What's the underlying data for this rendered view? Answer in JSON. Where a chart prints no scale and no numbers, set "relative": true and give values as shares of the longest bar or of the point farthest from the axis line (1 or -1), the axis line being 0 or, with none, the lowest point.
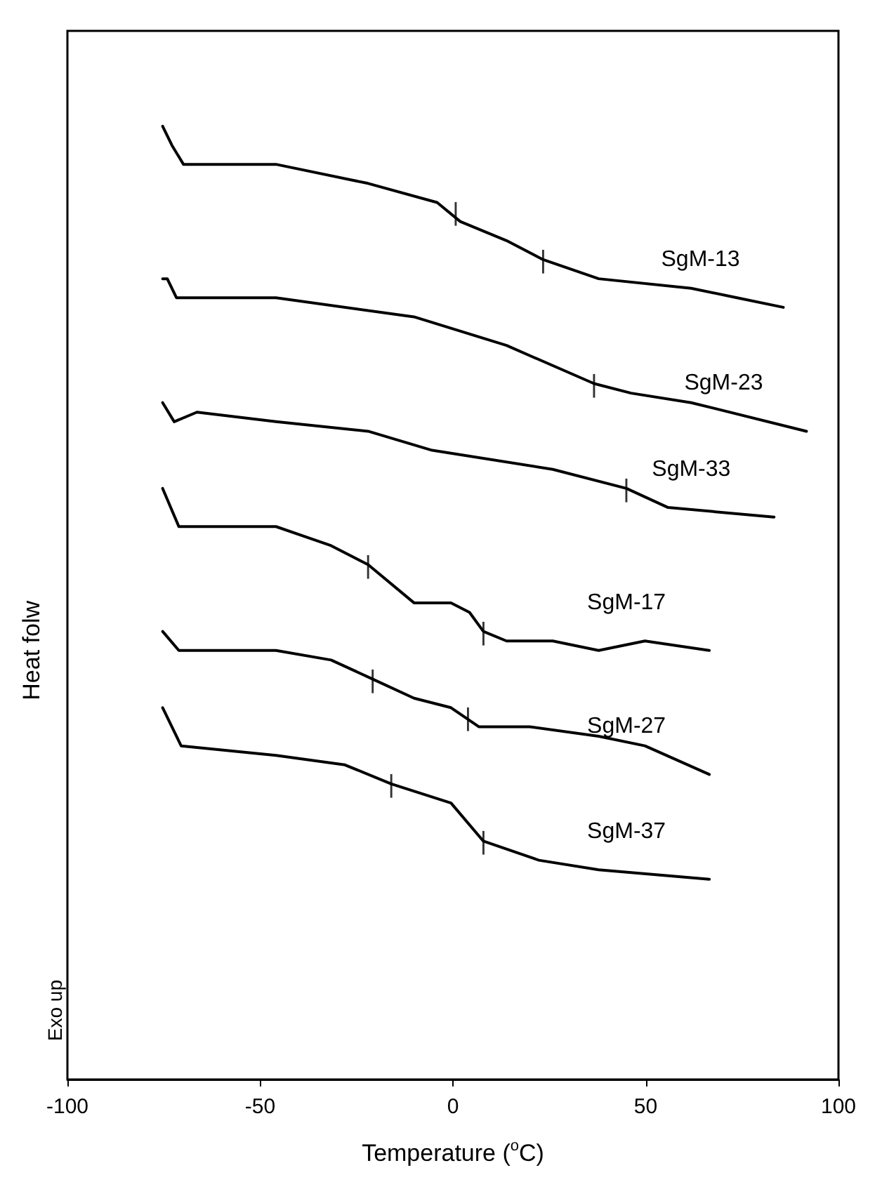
{
  "chart_data": {
    "type": "line",
    "relative": true,
    "xlabel": "Temperature ($^{o}$C)",
    "ylabel": "Heat folw",
    "xlim": [
      -100,
      100
    ],
    "xticks": [
      -100,
      -50,
      0,
      50,
      100
    ],
    "grid": false,
    "legend": false,
    "marker": "none",
    "line_style": "solid",
    "series": [
      {
        "name": "SgM-13",
        "color": "#000000",
        "x": [
          -75.3,
          -72.9,
          -69.9,
          -45.9,
          -22,
          -4.1,
          1.9,
          13.9,
          23.4,
          37.8,
          61.8,
          73.7,
          85.7
        ],
        "values": [
          1.0,
          0.98,
          0.96,
          0.96,
          0.94,
          0.92,
          0.9,
          0.88,
          0.86,
          0.84,
          0.83,
          0.82,
          0.81
        ]
      },
      {
        "name": "SgM-23",
        "color": "#000000",
        "x": [
          -75.3,
          -74.1,
          -71.7,
          -45.9,
          -10.1,
          13.9,
          36.6,
          46.2,
          61.8,
          91.7
        ],
        "values": [
          0.84,
          0.84,
          0.82,
          0.82,
          0.8,
          0.77,
          0.73,
          0.72,
          0.71,
          0.68
        ]
      },
      {
        "name": "SgM-33",
        "color": "#000000",
        "x": [
          -75.3,
          -72.3,
          -66.4,
          -45.9,
          -22,
          -5.4,
          25.9,
          45,
          55.8,
          83.3
        ],
        "values": [
          0.71,
          0.69,
          0.7,
          0.69,
          0.68,
          0.66,
          0.64,
          0.62,
          0.6,
          0.59
        ]
      },
      {
        "name": "SgM-17",
        "color": "#000000",
        "x": [
          -75.3,
          -71.1,
          -67.5,
          -45.9,
          -31.6,
          -22,
          -10.1,
          -0.5,
          4.3,
          7.9,
          13.9,
          25.9,
          37.8,
          49.8,
          66.5
        ],
        "values": [
          0.62,
          0.58,
          0.58,
          0.58,
          0.56,
          0.54,
          0.5,
          0.5,
          0.49,
          0.47,
          0.46,
          0.46,
          0.45,
          0.46,
          0.45
        ]
      },
      {
        "name": "SgM-27",
        "color": "#000000",
        "x": [
          -75.3,
          -71.1,
          -45.9,
          -31.6,
          -20.8,
          -10.1,
          -0.5,
          6.7,
          19.9,
          37.8,
          49.8,
          66.5
        ],
        "values": [
          0.47,
          0.45,
          0.45,
          0.44,
          0.42,
          0.4,
          0.39,
          0.37,
          0.37,
          0.36,
          0.35,
          0.32
        ]
      },
      {
        "name": "SgM-37",
        "color": "#000000",
        "x": [
          -75.3,
          -70.5,
          -45.9,
          -28,
          -16,
          -0.5,
          7.9,
          22.3,
          37.8,
          66.5
        ],
        "values": [
          0.39,
          0.35,
          0.34,
          0.33,
          0.31,
          0.29,
          0.25,
          0.23,
          0.22,
          0.21
        ]
      }
    ],
    "annotations": [
      "Exo up",
      {
        "text": "|",
        "x": 0.7,
        "y": 0.91
      },
      {
        "text": "|",
        "x": 23.4,
        "y": 0.86
      },
      {
        "text": "|",
        "x": 36.6,
        "y": 0.73
      },
      {
        "text": "|",
        "x": 45,
        "y": 0.62
      },
      {
        "text": "|",
        "x": -22,
        "y": 0.54
      },
      {
        "text": "|",
        "x": 7.9,
        "y": 0.47
      },
      {
        "text": "|",
        "x": -20.8,
        "y": 0.42
      },
      {
        "text": "|",
        "x": 3.9,
        "y": 0.38
      },
      {
        "text": "|",
        "x": -16,
        "y": 0.31
      },
      {
        "text": "|",
        "x": 7.9,
        "y": 0.25
      }
    ]
  }
}
